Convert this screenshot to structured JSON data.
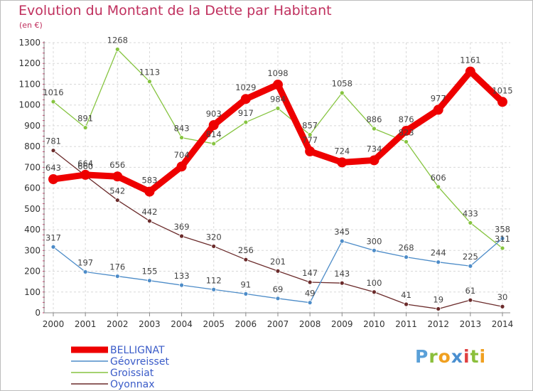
{
  "title": "Evolution du Montant de la Dette par Habitant",
  "subtitle": "(en €)",
  "logo": {
    "text": "Proxiti",
    "letters": [
      {
        "ch": "P",
        "color": "#5aa0d8"
      },
      {
        "ch": "r",
        "color": "#8bbf3b"
      },
      {
        "ch": "o",
        "color": "#f0a020"
      },
      {
        "ch": "x",
        "color": "#4a8fd0"
      },
      {
        "ch": "i",
        "color": "#e04040"
      },
      {
        "ch": "t",
        "color": "#8bbf3b"
      },
      {
        "ch": "i",
        "color": "#f0a020"
      }
    ]
  },
  "chart_data": {
    "type": "line",
    "x": [
      "2000",
      "2001",
      "2002",
      "2003",
      "2004",
      "2005",
      "2006",
      "2007",
      "2008",
      "2009",
      "2010",
      "2011",
      "2012",
      "2013",
      "2014"
    ],
    "ylim": [
      0,
      1300
    ],
    "yticks": [
      0,
      100,
      200,
      300,
      400,
      500,
      600,
      700,
      800,
      900,
      1000,
      1100,
      1200,
      1300
    ],
    "grid": true,
    "legend_position": "bottom-left",
    "series": [
      {
        "name": "Oyonnax",
        "color": "#6b2b2b",
        "values": [
          781,
          660,
          542,
          442,
          369,
          320,
          256,
          201,
          147,
          143,
          100,
          41,
          19,
          61,
          30
        ]
      },
      {
        "name": "Groissiat",
        "color": "#86c440",
        "values": [
          1016,
          891,
          1268,
          1113,
          843,
          814,
          917,
          984,
          857,
          1058,
          886,
          823,
          606,
          433,
          311
        ]
      },
      {
        "name": "Géovreisset",
        "color": "#4d8cc8",
        "values": [
          317,
          197,
          176,
          155,
          133,
          112,
          91,
          69,
          49,
          345,
          300,
          268,
          244,
          225,
          358
        ]
      },
      {
        "name": "BELLIGNAT",
        "color": "#ee0000",
        "values": [
          643,
          664,
          656,
          583,
          704,
          903,
          1029,
          1098,
          777,
          724,
          734,
          876,
          977,
          1161,
          1015
        ]
      }
    ],
    "legend_order": [
      "BELLIGNAT",
      "Géovreisset",
      "Groissiat",
      "Oyonnax"
    ]
  }
}
